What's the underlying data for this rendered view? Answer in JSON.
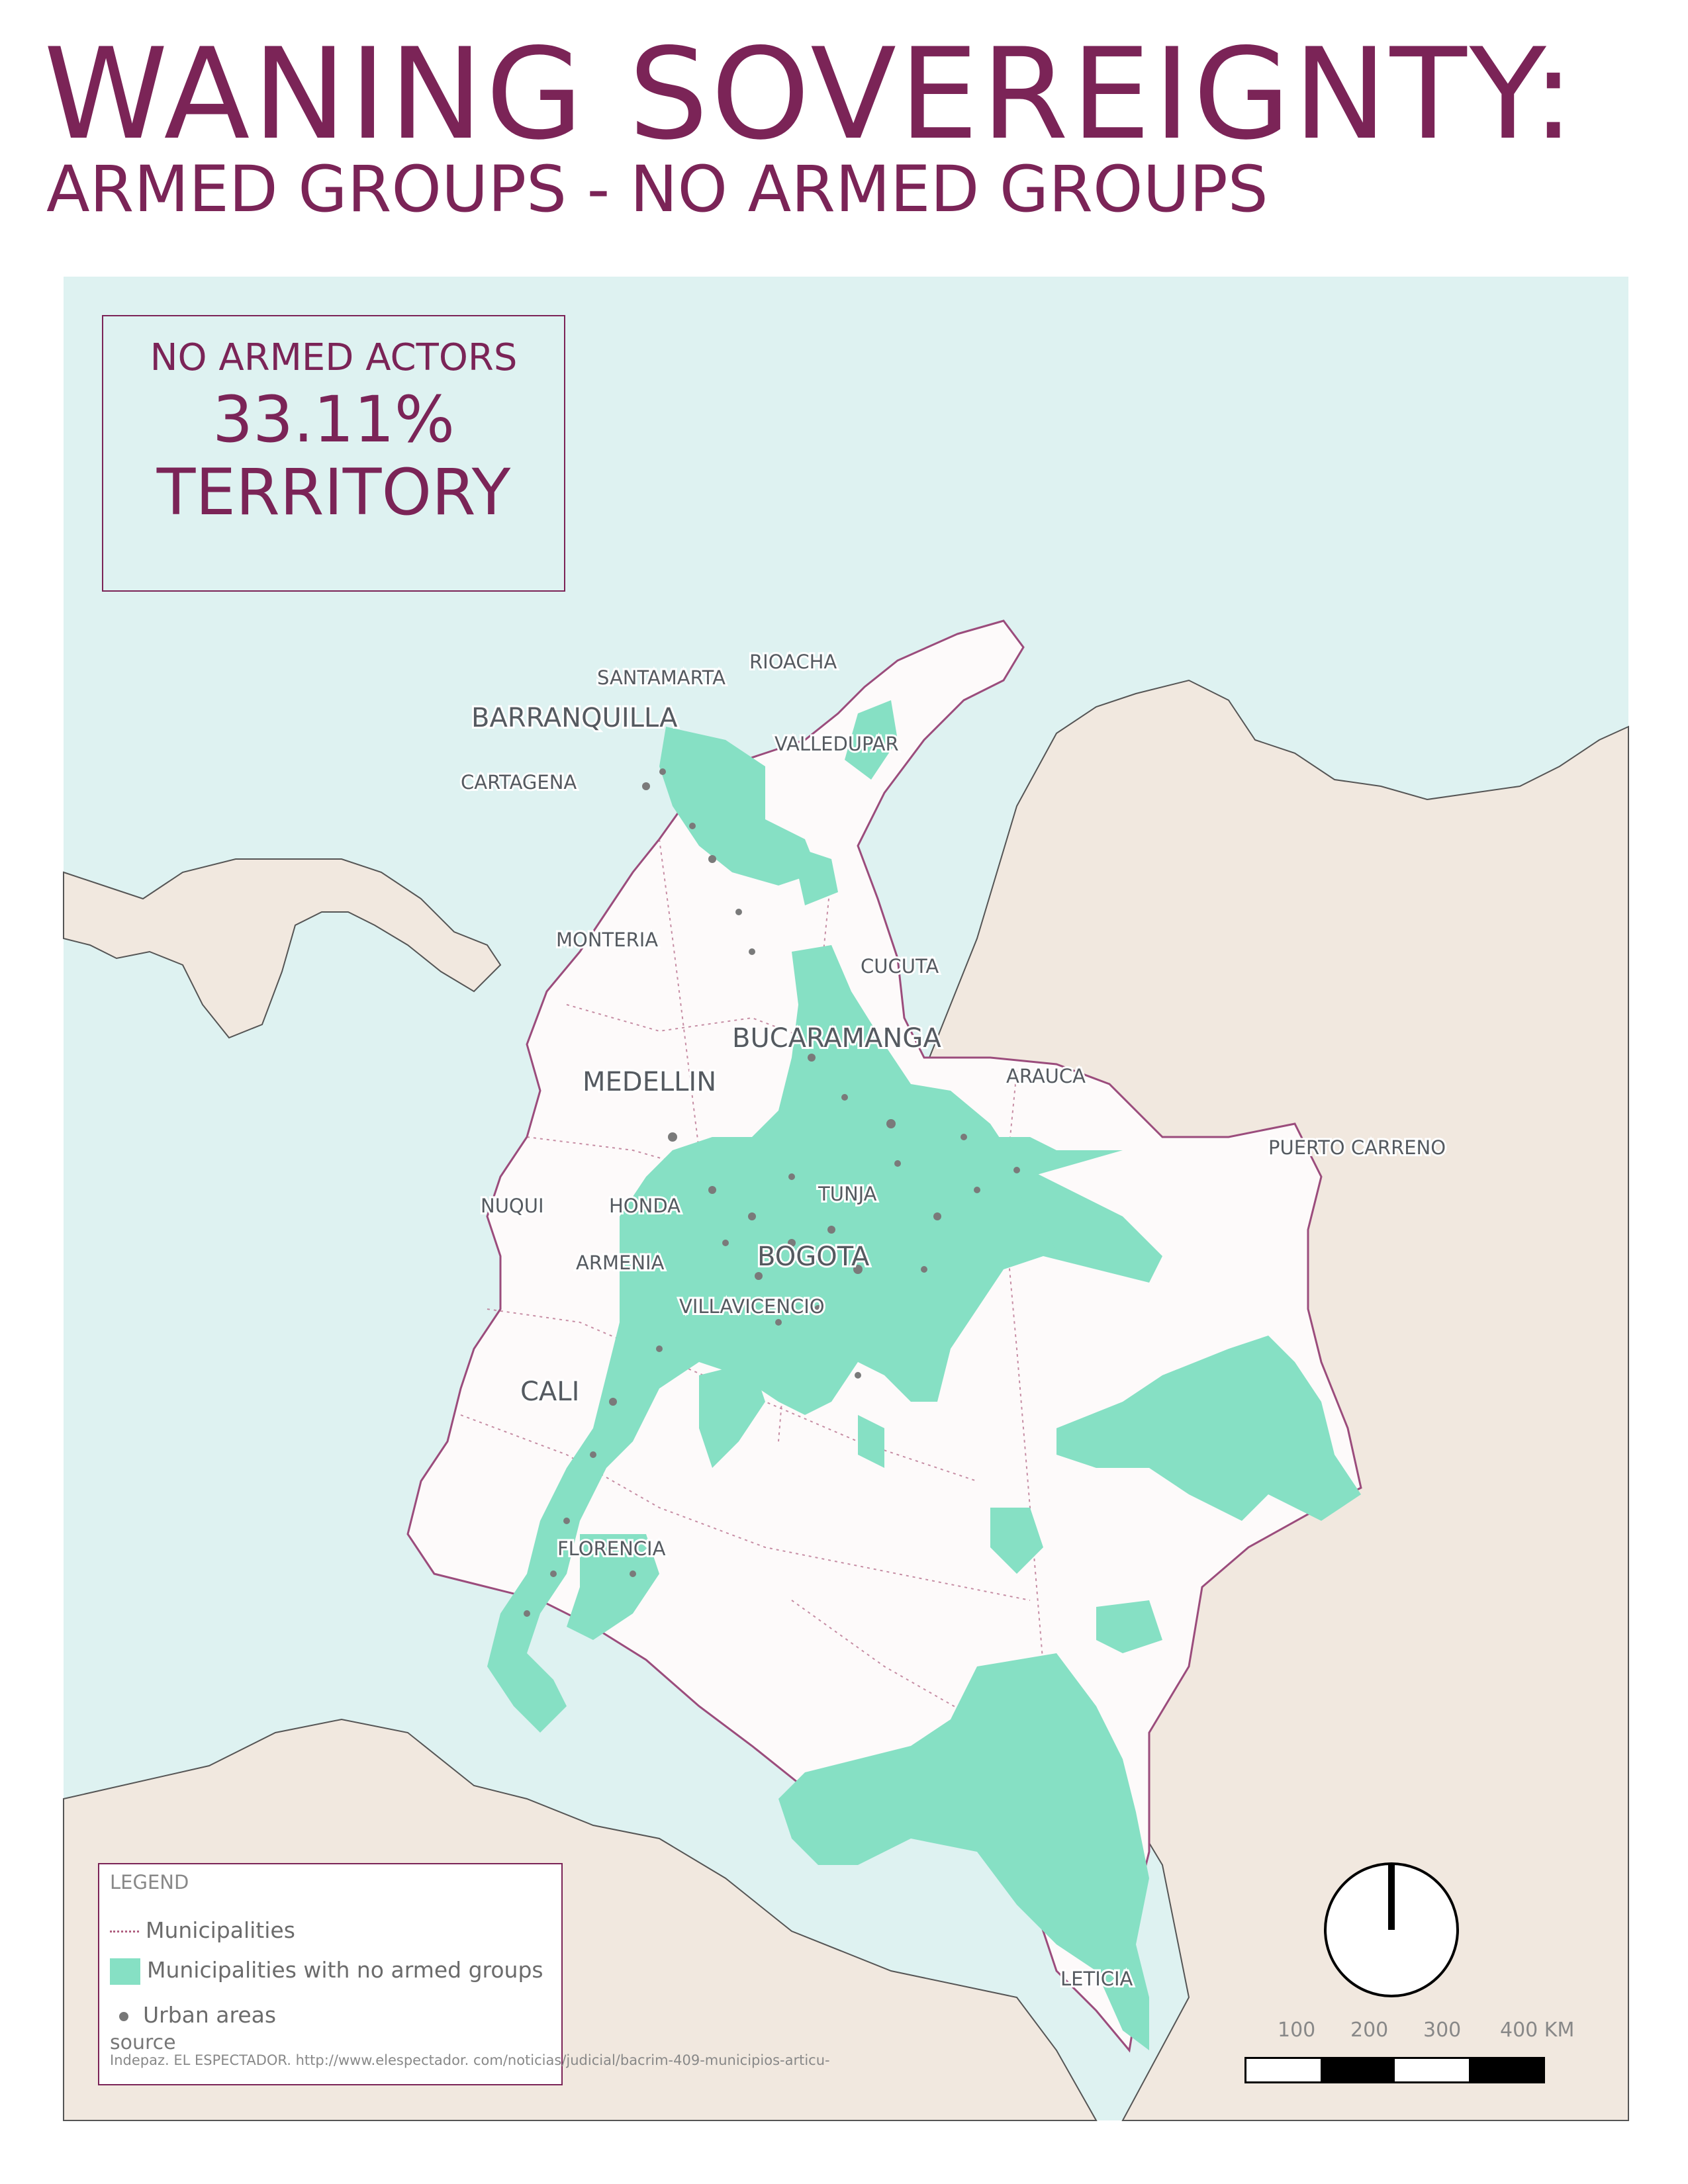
{
  "header": {
    "title": "WANING SOVEREIGNTY:",
    "subtitle": "ARMED GROUPS - NO ARMED GROUPS"
  },
  "stat_box": {
    "caption": "NO ARMED ACTORS",
    "value": "33.11%",
    "unit": "TERRITORY"
  },
  "cities": {
    "rioacha": "RIOACHA",
    "santamarta": "SANTAMARTA",
    "barranquilla": "BARRANQUILLA",
    "valledupar": "VALLEDUPAR",
    "cartagena": "CARTAGENA",
    "monteria": "MONTERIA",
    "cucuta": "CUCUTA",
    "bucaramanga": "BUCARAMANGA",
    "arauca": "ARAUCA",
    "medellin": "MEDELLIN",
    "puerto_carreno": "PUERTO CARRENO",
    "tunja": "TUNJA",
    "nuqui": "NUQUI",
    "honda": "HONDA",
    "bogota": "BOGOTA",
    "armenia": "ARMENIA",
    "villavicencio": "VILLAVICENCIO",
    "cali": "CALI",
    "florencia": "FLORENCIA",
    "leticia": "LETICIA"
  },
  "legend": {
    "title": "LEGEND",
    "municipalities": "Municipalities",
    "no_armed_groups": "Municipalities with no armed groups",
    "urban_areas": "Urban areas",
    "source_label": "source",
    "source_text": "Indepaz. EL ESPECTADOR. http://www.elespectador. com/noticias/judicial/bacrim-409-municipios-articu-"
  },
  "scale_bar": {
    "labels": [
      "100",
      "200",
      "300",
      "400 KM"
    ]
  },
  "colors": {
    "title": "#7b2457",
    "sea": "#def2f1",
    "land": "#f1e8df",
    "colombia": "#fdfafa",
    "no_armed_groups": "#86e0c4",
    "borders": "#9b4c7c",
    "urban": "#7a7a7a"
  },
  "icons": {
    "north_arrow": "north-arrow-icon"
  }
}
